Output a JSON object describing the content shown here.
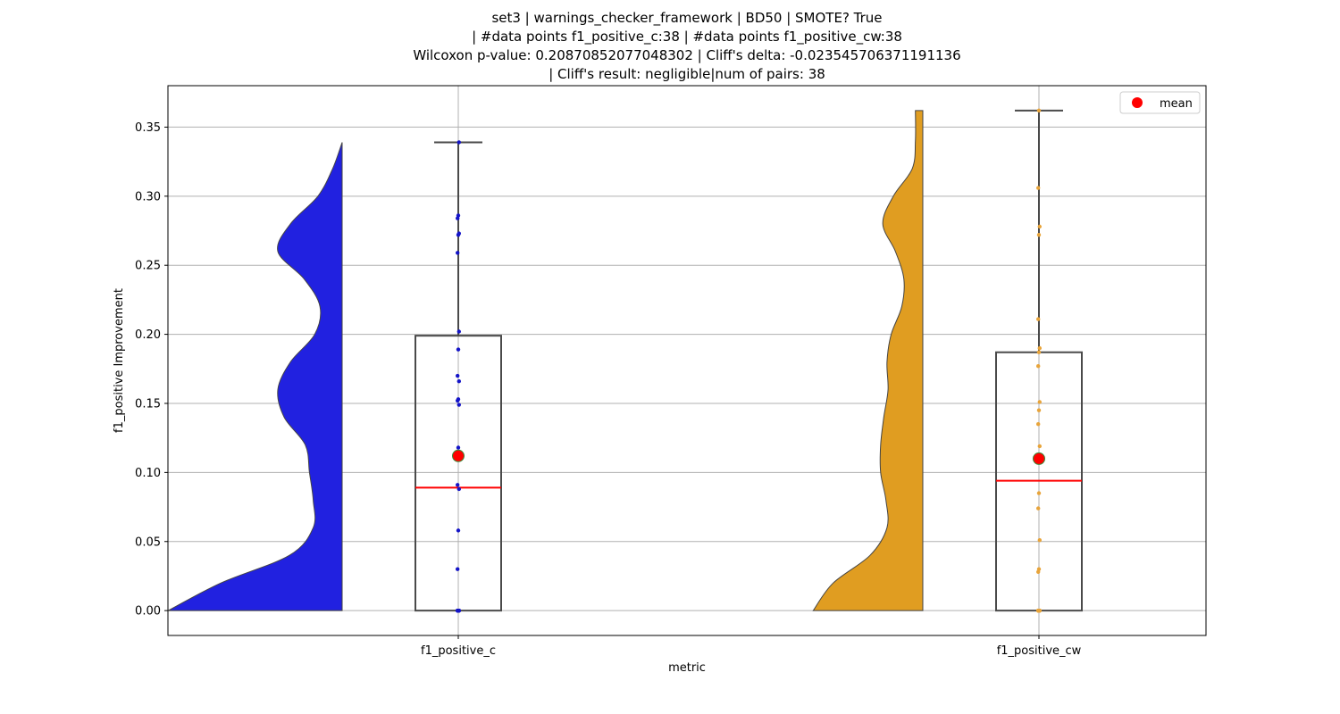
{
  "chart_data": {
    "type": "violin-box",
    "title_lines": [
      "set3 | warnings_checker_framework | BD50 | SMOTE? True",
      "| #data points f1_positive_c:38 | #data points f1_positive_cw:38",
      "Wilcoxon p-value: 0.20870852077048302 | Cliff's delta: -0.023545706371191136",
      "| Cliff's result: negligible|num of pairs: 38"
    ],
    "xlabel": "metric",
    "ylabel": "f1_positive Improvement",
    "ylim": [
      -0.018,
      0.38
    ],
    "yticks": [
      0.0,
      0.05,
      0.1,
      0.15,
      0.2,
      0.25,
      0.3,
      0.35
    ],
    "ytick_labels": [
      "0.00",
      "0.05",
      "0.10",
      "0.15",
      "0.20",
      "0.25",
      "0.30",
      "0.35"
    ],
    "categories": [
      "f1_positive_c",
      "f1_positive_cw"
    ],
    "grid": true,
    "legend": {
      "position": "top-right",
      "entries": [
        {
          "label": "mean",
          "color": "#ff0000"
        }
      ]
    },
    "series": [
      {
        "name": "f1_positive_c",
        "color": "#2121e0",
        "point_color": "#1414c8",
        "box": {
          "min": 0.0,
          "q1": 0.0,
          "median": 0.089,
          "q3": 0.199,
          "max": 0.339
        },
        "mean": 0.112,
        "points": [
          0.0,
          0.0,
          0.0,
          0.0,
          0.0,
          0.0,
          0.0,
          0.0,
          0.0,
          0.0,
          0.0,
          0.0,
          0.03,
          0.058,
          0.088,
          0.091,
          0.118,
          0.149,
          0.152,
          0.153,
          0.166,
          0.17,
          0.189,
          0.202,
          0.259,
          0.272,
          0.273,
          0.284,
          0.286,
          0.339
        ],
        "density": [
          [
            0.0,
            0.33
          ],
          [
            0.02,
            0.23
          ],
          [
            0.04,
            0.1
          ],
          [
            0.06,
            0.055
          ],
          [
            0.08,
            0.055
          ],
          [
            0.1,
            0.062
          ],
          [
            0.12,
            0.07
          ],
          [
            0.14,
            0.11
          ],
          [
            0.16,
            0.122
          ],
          [
            0.18,
            0.098
          ],
          [
            0.2,
            0.052
          ],
          [
            0.22,
            0.042
          ],
          [
            0.24,
            0.072
          ],
          [
            0.26,
            0.122
          ],
          [
            0.28,
            0.098
          ],
          [
            0.3,
            0.046
          ],
          [
            0.32,
            0.018
          ],
          [
            0.339,
            0.0
          ]
        ]
      },
      {
        "name": "f1_positive_cw",
        "color": "#e09d21",
        "point_color": "#e8a43a",
        "box": {
          "min": 0.0,
          "q1": 0.0,
          "median": 0.094,
          "q3": 0.187,
          "max": 0.362
        },
        "mean": 0.11,
        "points": [
          0.0,
          0.0,
          0.0,
          0.0,
          0.0,
          0.0,
          0.0,
          0.0,
          0.0,
          0.0,
          0.0,
          0.0,
          0.028,
          0.03,
          0.051,
          0.074,
          0.085,
          0.119,
          0.135,
          0.145,
          0.151,
          0.177,
          0.187,
          0.19,
          0.211,
          0.272,
          0.278,
          0.306,
          0.362
        ],
        "density": [
          [
            0.0,
            0.208
          ],
          [
            0.02,
            0.17
          ],
          [
            0.04,
            0.1
          ],
          [
            0.06,
            0.068
          ],
          [
            0.08,
            0.07
          ],
          [
            0.1,
            0.08
          ],
          [
            0.12,
            0.08
          ],
          [
            0.14,
            0.074
          ],
          [
            0.16,
            0.066
          ],
          [
            0.18,
            0.068
          ],
          [
            0.2,
            0.06
          ],
          [
            0.22,
            0.04
          ],
          [
            0.24,
            0.036
          ],
          [
            0.26,
            0.052
          ],
          [
            0.28,
            0.076
          ],
          [
            0.3,
            0.056
          ],
          [
            0.32,
            0.02
          ],
          [
            0.34,
            0.014
          ],
          [
            0.362,
            0.014
          ]
        ]
      }
    ]
  }
}
